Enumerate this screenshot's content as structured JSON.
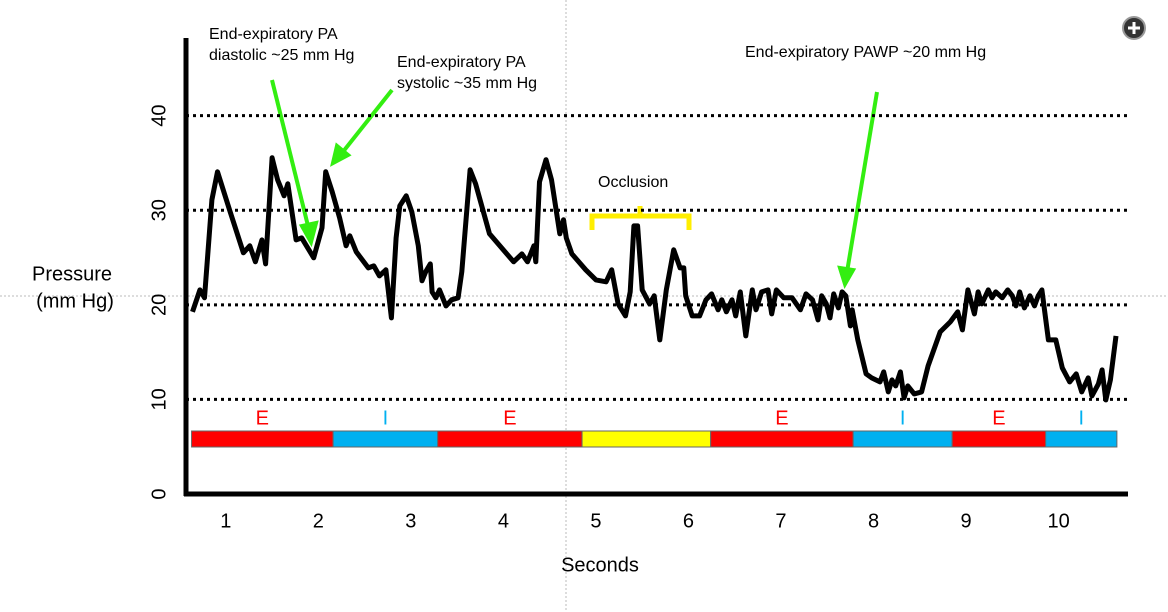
{
  "chart_data": {
    "type": "line",
    "y_label": [
      "Pressure",
      "(mm  Hg)"
    ],
    "x_label": "Seconds",
    "xlim": [
      0.57,
      10.75
    ],
    "xticks": [
      1,
      2,
      3,
      4,
      5,
      6,
      7,
      8,
      9,
      10
    ],
    "ylim": [
      0,
      48
    ],
    "yticks": [
      0,
      10,
      20,
      30,
      40
    ],
    "grid": true,
    "x": [
      0.64,
      0.72,
      0.77,
      0.85,
      0.91,
      1.04,
      1.19,
      1.26,
      1.32,
      1.39,
      1.43,
      1.5,
      1.56,
      1.63,
      1.67,
      1.76,
      1.82,
      1.95,
      2.04,
      2.08,
      2.15,
      2.23,
      2.3,
      2.34,
      2.41,
      2.54,
      2.6,
      2.66,
      2.73,
      2.79,
      2.84,
      2.88,
      2.95,
      3.01,
      3.08,
      3.12,
      3.16,
      3.21,
      3.23,
      3.27,
      3.31,
      3.38,
      3.44,
      3.51,
      3.55,
      3.64,
      3.7,
      3.85,
      4.11,
      4.2,
      4.26,
      4.33,
      4.35,
      4.39,
      4.46,
      4.52,
      4.61,
      4.65,
      4.68,
      4.74,
      4.89,
      5.0,
      5.11,
      5.17,
      5.24,
      5.32,
      5.37,
      5.41,
      5.45,
      5.5,
      5.58,
      5.63,
      5.69,
      5.76,
      5.84,
      5.91,
      5.95,
      5.97,
      6.04,
      6.12,
      6.19,
      6.25,
      6.32,
      6.36,
      6.41,
      6.47,
      6.51,
      6.56,
      6.62,
      6.69,
      6.73,
      6.79,
      6.86,
      6.9,
      6.95,
      7.03,
      7.12,
      7.21,
      7.27,
      7.34,
      7.4,
      7.44,
      7.49,
      7.53,
      7.57,
      7.62,
      7.66,
      7.7,
      7.75,
      7.77,
      7.83,
      7.92,
      7.98,
      8.07,
      8.11,
      8.16,
      8.2,
      8.24,
      8.29,
      8.33,
      8.37,
      8.44,
      8.52,
      8.59,
      8.72,
      8.83,
      8.91,
      8.96,
      9.02,
      9.09,
      9.13,
      9.17,
      9.24,
      9.28,
      9.32,
      9.39,
      9.45,
      9.5,
      9.54,
      9.58,
      9.63,
      9.69,
      9.74,
      9.78,
      9.82,
      9.89,
      9.97,
      10.04,
      10.12,
      10.19,
      10.25,
      10.32,
      10.36,
      10.43,
      10.47,
      10.51,
      10.56,
      10.62
    ],
    "series": [
      {
        "color": "#000000",
        "values": [
          19.26,
          21.58,
          20.74,
          31.1,
          34.07,
          30.05,
          25.5,
          26.24,
          24.55,
          26.87,
          24.33,
          35.55,
          33.22,
          31.53,
          32.8,
          26.87,
          27.08,
          24.97,
          28.14,
          34.07,
          31.95,
          29.2,
          26.24,
          27.3,
          25.6,
          23.91,
          24.12,
          23.06,
          23.7,
          18.62,
          27.08,
          30.47,
          31.53,
          29.84,
          26.24,
          22.54,
          23.49,
          24.33,
          21.37,
          20.74,
          21.58,
          19.89,
          20.53,
          20.74,
          23.49,
          34.28,
          32.8,
          27.51,
          24.55,
          25.39,
          24.55,
          26.24,
          24.55,
          33.01,
          35.34,
          33.22,
          27.51,
          28.99,
          27.08,
          25.39,
          23.7,
          22.64,
          22.43,
          23.7,
          20.1,
          18.83,
          21.37,
          28.35,
          28.35,
          21.58,
          20.1,
          20.95,
          16.29,
          21.58,
          25.82,
          23.91,
          23.91,
          20.95,
          18.83,
          18.83,
          20.53,
          21.16,
          19.47,
          20.53,
          19.26,
          20.53,
          18.83,
          21.37,
          16.72,
          21.58,
          19.47,
          21.37,
          21.58,
          19.04,
          21.58,
          20.74,
          20.74,
          19.47,
          21.16,
          20.53,
          18.41,
          20.95,
          20.1,
          18.62,
          21.16,
          19.68,
          21.37,
          20.95,
          17.77,
          19.47,
          16.29,
          12.7,
          12.27,
          11.85,
          12.91,
          10.79,
          12.06,
          11.43,
          12.91,
          10.16,
          11.43,
          10.58,
          10.79,
          13.54,
          17.14,
          18.2,
          19.26,
          17.35,
          21.58,
          19.04,
          21.37,
          20.1,
          21.58,
          20.74,
          21.37,
          20.74,
          21.58,
          20.95,
          19.89,
          21.37,
          19.68,
          20.95,
          19.89,
          20.95,
          21.58,
          16.29,
          16.29,
          13.33,
          11.85,
          12.7,
          10.79,
          12.27,
          10.37,
          11.64,
          13.12,
          9.95,
          12.06,
          16.72
        ]
      }
    ],
    "phases": [
      {
        "label": "E",
        "start": 0.63,
        "end": 2.16,
        "color": "#ff0000"
      },
      {
        "label": "I",
        "start": 2.16,
        "end": 3.29,
        "color": "#00b0f0"
      },
      {
        "label": "E",
        "start": 3.29,
        "end": 4.85,
        "color": "#ff0000"
      },
      {
        "label": null,
        "start": 4.85,
        "end": 6.24,
        "color": "#ffff00"
      },
      {
        "label": "E",
        "start": 6.24,
        "end": 7.78,
        "color": "#ff0000"
      },
      {
        "label": "I",
        "start": 7.78,
        "end": 8.85,
        "color": "#00b0f0"
      },
      {
        "label": "E",
        "start": 8.85,
        "end": 9.86,
        "color": "#ff0000"
      },
      {
        "label": "I",
        "start": 9.86,
        "end": 10.63,
        "color": "#00b0f0"
      }
    ],
    "annotations": [
      {
        "lines": [
          "End-expiratory PA",
          "diastolic ~25 mm Hg"
        ]
      },
      {
        "lines": [
          "End-expiratory PA",
          "systolic ~35 mm Hg"
        ]
      },
      {
        "lines": [
          "End-expiratory PAWP ~20 mm Hg"
        ]
      },
      {
        "lines": [
          "Occlusion"
        ]
      }
    ]
  }
}
